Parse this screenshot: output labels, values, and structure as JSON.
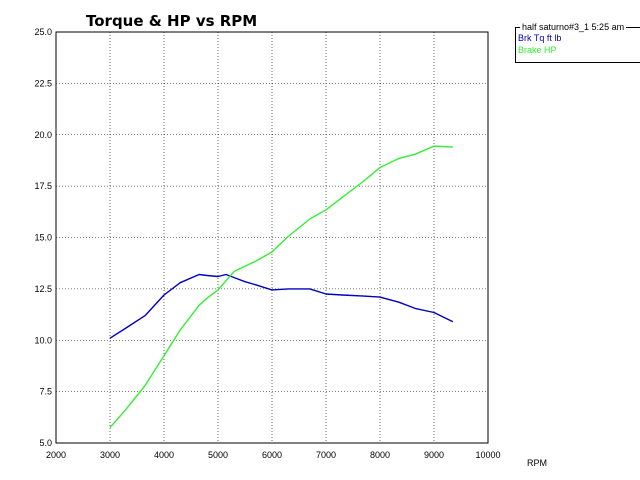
{
  "chart_data": {
    "type": "line",
    "title": "Torque & HP vs RPM",
    "xlabel": "RPM",
    "ylabel": "",
    "xlim": [
      2000,
      10000
    ],
    "ylim": [
      5.0,
      25.0
    ],
    "xticks": [
      "2000",
      "3000",
      "4000",
      "5000",
      "6000",
      "7000",
      "8000",
      "9000",
      "10000"
    ],
    "yticks": [
      "5.0",
      "7.5",
      "10.0",
      "12.5",
      "15.0",
      "17.5",
      "20.0",
      "22.5",
      "25.0"
    ],
    "grid": true,
    "legend": {
      "placement": "top-right",
      "header": "half saturno#3_1 5:25 am",
      "entries": [
        "Brk Tq ft lb",
        "Brake HP"
      ]
    },
    "series": [
      {
        "name": "Brk Tq ft lb",
        "color": "#0000c0",
        "x": [
          3000,
          3300,
          3650,
          4000,
          4300,
          4650,
          4800,
          5000,
          5150,
          5300,
          5500,
          5700,
          6000,
          6300,
          6700,
          7000,
          7300,
          7700,
          8000,
          8350,
          8650,
          9000,
          9350
        ],
        "y": [
          10.1,
          10.6,
          11.2,
          12.2,
          12.8,
          13.2,
          13.15,
          13.1,
          13.2,
          13.05,
          12.85,
          12.7,
          12.45,
          12.5,
          12.5,
          12.25,
          12.2,
          12.15,
          12.1,
          11.85,
          11.55,
          11.35,
          10.9
        ]
      },
      {
        "name": "Brake HP",
        "color": "#33ee33",
        "x": [
          3000,
          3300,
          3650,
          4000,
          4300,
          4650,
          4800,
          5000,
          5150,
          5300,
          5500,
          5700,
          6000,
          6300,
          6700,
          7000,
          7300,
          7700,
          8000,
          8350,
          8650,
          9000,
          9350
        ],
        "y": [
          5.75,
          6.65,
          7.8,
          9.25,
          10.5,
          11.7,
          12.05,
          12.45,
          12.9,
          13.35,
          13.6,
          13.85,
          14.3,
          15.05,
          15.9,
          16.35,
          16.95,
          17.75,
          18.4,
          18.85,
          19.05,
          19.45,
          19.4
        ]
      }
    ]
  }
}
